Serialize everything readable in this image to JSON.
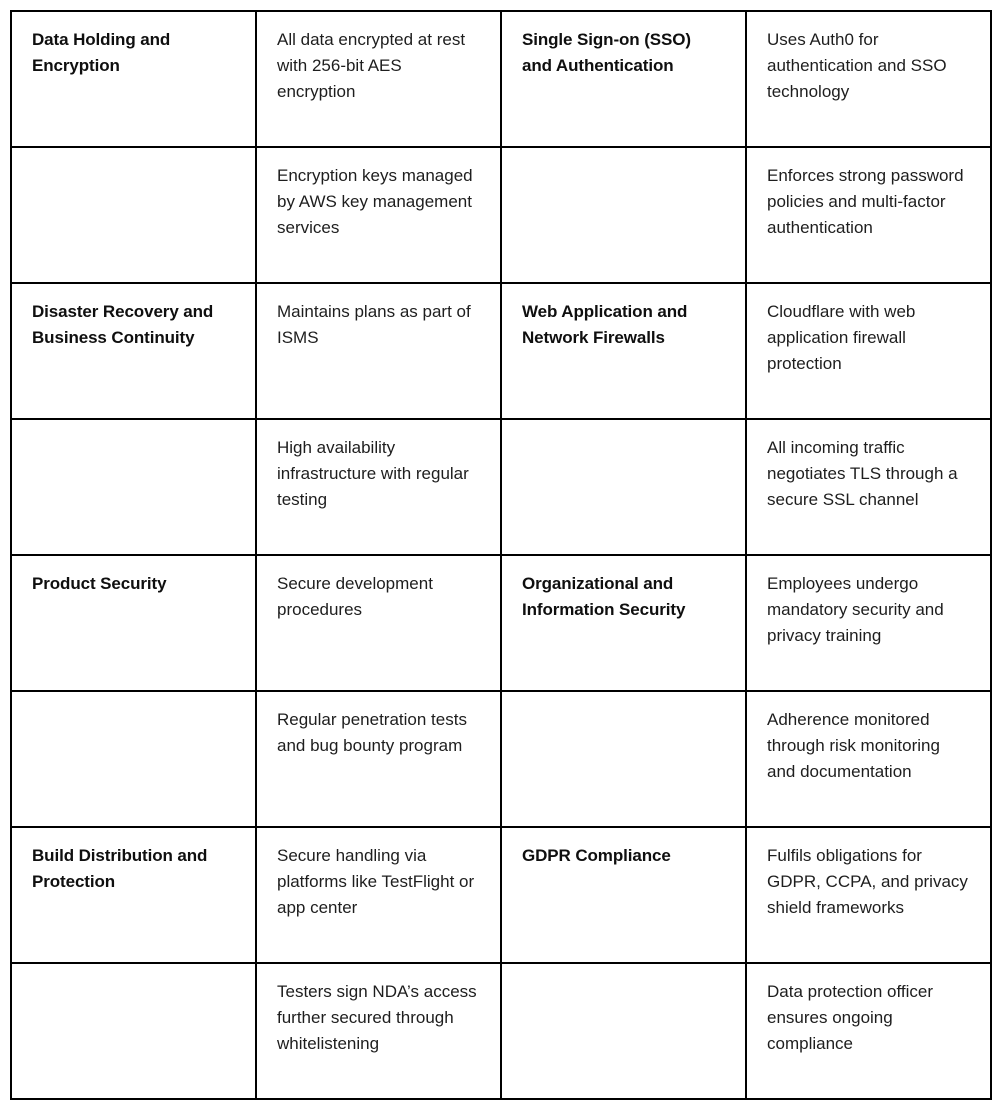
{
  "table": {
    "description": "Security overview table, 4 columns (category, details, category, details), 8 rows",
    "border_color": "#000000",
    "body_text_color": "#1e1e1e",
    "category_text_color": "#0f0f0f",
    "background_color": "#ffffff",
    "rows": [
      {
        "cells": [
          {
            "text": "Data Holding and Encryption",
            "bold": true
          },
          {
            "text": "All data encrypted at rest with 256-bit AES encryption",
            "bold": false
          },
          {
            "text": "Single Sign-on (SSO) and Authentication",
            "bold": true
          },
          {
            "text": "Uses Auth0 for authentication and SSO technology",
            "bold": false
          }
        ]
      },
      {
        "cells": [
          {
            "text": "",
            "bold": false
          },
          {
            "text": "Encryption keys managed by AWS key management services",
            "bold": false
          },
          {
            "text": "",
            "bold": false
          },
          {
            "text": "Enforces strong password policies and multi-factor authentication",
            "bold": false
          }
        ]
      },
      {
        "cells": [
          {
            "text": "Disaster Recovery and Business Continuity",
            "bold": true
          },
          {
            "text": "Maintains plans as part of ISMS",
            "bold": false
          },
          {
            "text": "Web Application and Network Firewalls",
            "bold": true
          },
          {
            "text": "Cloudflare with web application firewall protection",
            "bold": false
          }
        ]
      },
      {
        "cells": [
          {
            "text": "",
            "bold": false
          },
          {
            "text": "High availability infrastructure with regular testing",
            "bold": false
          },
          {
            "text": "",
            "bold": false
          },
          {
            "text": "All incoming traffic negotiates TLS through a secure SSL channel",
            "bold": false
          }
        ]
      },
      {
        "cells": [
          {
            "text": "Product Security",
            "bold": true
          },
          {
            "text": "Secure development procedures",
            "bold": false
          },
          {
            "text": "Organizational and Information Security",
            "bold": true
          },
          {
            "text": "Employees undergo mandatory security and privacy training",
            "bold": false
          }
        ]
      },
      {
        "cells": [
          {
            "text": "",
            "bold": false
          },
          {
            "text": "Regular penetration tests and bug bounty program",
            "bold": false
          },
          {
            "text": "",
            "bold": false
          },
          {
            "text": "Adherence monitored through risk monitoring and documentation",
            "bold": false
          }
        ]
      },
      {
        "cells": [
          {
            "text": "Build Distribution and Protection",
            "bold": true
          },
          {
            "text": "Secure handling via platforms like TestFlight or app center",
            "bold": false
          },
          {
            "text": "GDPR Compliance",
            "bold": true
          },
          {
            "text": "Fulfils obligations for GDPR, CCPA, and privacy shield frameworks",
            "bold": false
          }
        ]
      },
      {
        "cells": [
          {
            "text": "",
            "bold": false
          },
          {
            "text": "Testers sign NDA’s access further secured through whitelistening",
            "bold": false
          },
          {
            "text": "",
            "bold": false
          },
          {
            "text": "Data protection officer ensures ongoing compliance",
            "bold": false
          }
        ]
      }
    ]
  }
}
